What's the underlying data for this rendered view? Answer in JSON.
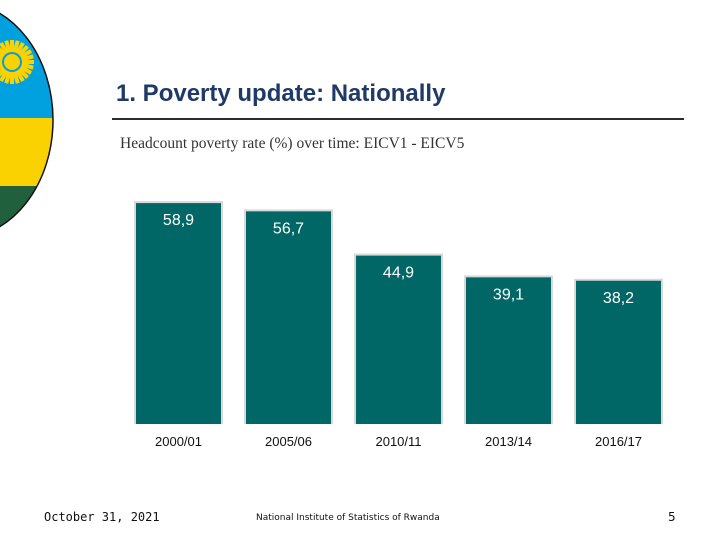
{
  "slide": {
    "title": "1. Poverty update: Nationally"
  },
  "footer": {
    "date": "October 31, 2021",
    "organization": "National Institute of Statistics of Rwanda",
    "page_number": "5"
  },
  "colors": {
    "bar": "#006666",
    "bar_background": "#d9d9d9",
    "title": "#1f3a66",
    "flag_blue": "#00a1de",
    "flag_yellow": "#fad201",
    "flag_green": "#20603d"
  },
  "chart_data": {
    "type": "bar",
    "title": "Headcount poverty rate (%) over time: EICV1 - EICV5",
    "categories": [
      "2000/01",
      "2005/06",
      "2010/11",
      "2013/14",
      "2016/17"
    ],
    "values": [
      58.9,
      56.7,
      44.9,
      39.1,
      38.2
    ],
    "value_labels": [
      "58,9",
      "56,7",
      "44,9",
      "39,1",
      "38,2"
    ],
    "xlabel": "",
    "ylabel": "",
    "ylim": [
      0,
      60
    ],
    "grid": false,
    "legend": "none"
  }
}
